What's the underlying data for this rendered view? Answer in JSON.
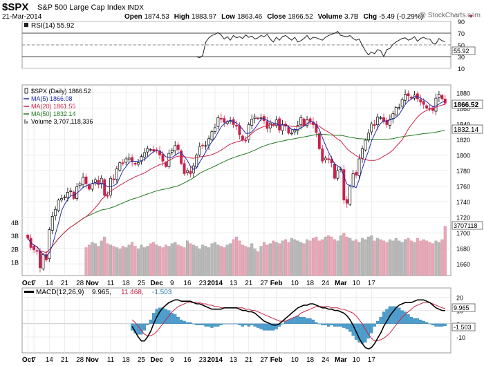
{
  "header": {
    "symbol": "$SPX",
    "name": "S&P 500 Large Cap Index",
    "exchange": "INDX",
    "date": "21-Mar-2014",
    "quote": [
      {
        "label": "Open",
        "value": "1874.53"
      },
      {
        "label": "High",
        "value": "1883.97"
      },
      {
        "label": "Low",
        "value": "1863.46"
      },
      {
        "label": "Close",
        "value": "1866.52"
      },
      {
        "label": "Volume",
        "value": "3.7B"
      },
      {
        "label": "Chg",
        "value": "-5.49 (-0.29%)"
      }
    ],
    "chg_arrow": "down-triangle-icon",
    "watermark": "@ StockCharts.com"
  },
  "colors": {
    "up": "#ffffff",
    "down": "#cc1f4a",
    "ma5": "#1f2aa8",
    "ma20": "#cc2244",
    "ma50": "#1e7a1e",
    "vol_up": "#b8b8b8",
    "vol_down": "#e8a7b6",
    "macd_hist": "#4a9fd0",
    "rsi_line": "#222222"
  },
  "chart_data": [
    {
      "type": "line",
      "panel": "rsi",
      "legend": "RSI(14) 55.92",
      "last_label": "55.92",
      "ylim": [
        10,
        90
      ],
      "yticks": [
        90,
        70,
        50,
        30,
        10
      ],
      "reference_lines": [
        70,
        30
      ],
      "series": [
        {
          "name": "RSI(14)",
          "values": [
            30,
            28,
            32,
            55,
            62,
            66,
            68,
            71,
            67,
            60,
            64,
            58,
            66,
            62,
            64,
            61,
            67,
            63,
            65,
            60,
            62,
            66,
            64,
            68,
            60,
            55,
            63,
            58,
            64,
            66,
            62,
            58,
            63,
            55,
            57,
            61,
            66,
            59,
            63,
            62,
            60,
            58,
            63,
            66,
            68,
            70,
            73,
            66,
            65,
            64,
            66,
            61,
            58,
            60,
            49,
            40,
            33,
            38,
            35,
            42,
            40,
            30,
            42,
            44,
            51,
            55,
            58,
            61,
            62,
            58,
            60,
            64,
            56,
            61,
            63,
            60,
            60,
            53,
            52,
            61,
            57,
            55.92
          ]
        }
      ]
    },
    {
      "type": "candlestick",
      "panel": "price",
      "legend": [
        {
          "label": "$SPX (Daily) 1866.52",
          "marker": "candle"
        },
        {
          "label": "MA(5) 1866.08",
          "color": "#1f2aa8"
        },
        {
          "label": "MA(20) 1861.55",
          "color": "#cc2244"
        },
        {
          "label": "MA(50) 1832.14",
          "color": "#1e7a1e"
        },
        {
          "label": "Volume 3,707,118,336",
          "marker": "bars"
        }
      ],
      "ylim": [
        1645,
        1890
      ],
      "yticks": [
        1660,
        1680,
        1700,
        1720,
        1740,
        1760,
        1780,
        1800,
        1820,
        1840,
        1860,
        1880
      ],
      "last_labels": [
        "1866.52",
        "1832.14"
      ],
      "xticks": [
        {
          "label": "Oct",
          "index": 0,
          "bold": true
        },
        {
          "label": "7",
          "index": 2
        },
        {
          "label": "14",
          "index": 7
        },
        {
          "label": "21",
          "index": 12
        },
        {
          "label": "28",
          "index": 17
        },
        {
          "label": "Nov",
          "index": 21,
          "bold": true
        },
        {
          "label": "11",
          "index": 27
        },
        {
          "label": "18",
          "index": 32
        },
        {
          "label": "25",
          "index": 37
        },
        {
          "label": "Dec",
          "index": 42,
          "bold": true
        },
        {
          "label": "9",
          "index": 47
        },
        {
          "label": "16",
          "index": 52
        },
        {
          "label": "23",
          "index": 57
        },
        {
          "label": "2014",
          "index": 61,
          "bold": true
        },
        {
          "label": "13",
          "index": 67
        },
        {
          "label": "21",
          "index": 72
        },
        {
          "label": "27",
          "index": 77
        },
        {
          "label": "Feb",
          "index": 81,
          "bold": true
        },
        {
          "label": "10",
          "index": 87
        },
        {
          "label": "18",
          "index": 92
        },
        {
          "label": "24",
          "index": 97
        },
        {
          "label": "Mar",
          "index": 102,
          "bold": true
        },
        {
          "label": "10",
          "index": 107
        },
        {
          "label": "17",
          "index": 112
        }
      ],
      "close": [
        1693,
        1681,
        1678,
        1676,
        1655,
        1672,
        1665,
        1704,
        1721,
        1730,
        1742,
        1744,
        1746,
        1752,
        1754,
        1744,
        1759,
        1763,
        1771,
        1763,
        1756,
        1763,
        1768,
        1762,
        1770,
        1748,
        1747,
        1770,
        1768,
        1782,
        1790,
        1789,
        1795,
        1796,
        1791,
        1788,
        1790,
        1798,
        1803,
        1808,
        1807,
        1805,
        1806,
        1800,
        1792,
        1785,
        1802,
        1806,
        1812,
        1807,
        1789,
        1776,
        1780,
        1776,
        1786,
        1800,
        1811,
        1812,
        1812,
        1821,
        1830,
        1835,
        1848,
        1846,
        1842,
        1843,
        1844,
        1839,
        1837,
        1826,
        1819,
        1818,
        1839,
        1846,
        1849,
        1847,
        1848,
        1844,
        1834,
        1841,
        1838,
        1845,
        1832,
        1839,
        1837,
        1828,
        1828,
        1832,
        1838,
        1848,
        1838,
        1845,
        1843,
        1839,
        1829,
        1808,
        1792,
        1796,
        1794,
        1790,
        1770,
        1780,
        1782,
        1742,
        1738,
        1760,
        1776,
        1774,
        1795,
        1808,
        1819,
        1828,
        1840,
        1838,
        1849,
        1848,
        1843,
        1839,
        1846,
        1853,
        1861,
        1861,
        1871,
        1878,
        1876,
        1873,
        1877,
        1872,
        1868,
        1865,
        1860,
        1859,
        1857,
        1873,
        1878,
        1872,
        1866.52
      ]
    },
    {
      "type": "bar",
      "panel": "volume",
      "name": "Volume",
      "ylim": [
        0,
        4.3
      ],
      "yticks": [
        {
          "label": "4B",
          "value": 4
        },
        {
          "label": "3B",
          "value": 3
        },
        {
          "label": "2B",
          "value": 2
        },
        {
          "label": "1B",
          "value": 1
        }
      ],
      "last_label": "3707118",
      "values": [
        2.1,
        2.3,
        2.5,
        2.4,
        2.2,
        2.6,
        2.9,
        2.4,
        2.3,
        2.2,
        2.1,
        2.0,
        2.2,
        2.1,
        2.3,
        2.5,
        2.2,
        2.0,
        2.3,
        2.1,
        2.2,
        2.4,
        2.5,
        2.3,
        2.2,
        2.1,
        2.3,
        2.2,
        2.4,
        2.5,
        2.3,
        2.2,
        2.1,
        2.6,
        2.4,
        2.3,
        2.2,
        2.0,
        2.3,
        2.2,
        2.1,
        2.4,
        2.5,
        2.3,
        2.2,
        2.1,
        2.3,
        2.4,
        2.7,
        2.9,
        2.6,
        2.3,
        2.2,
        2.1,
        2.4,
        2.0,
        1.8,
        2.2,
        2.5,
        2.3,
        2.4,
        2.6,
        2.5,
        2.4,
        2.6,
        2.7,
        2.5,
        2.8,
        2.7,
        2.6,
        2.5,
        2.4,
        2.7,
        2.6,
        2.8,
        2.9,
        2.6,
        2.7,
        2.9,
        3.0,
        2.9,
        2.7,
        2.6,
        3.0,
        3.2,
        2.9,
        2.8,
        2.6,
        2.7,
        2.5,
        2.8,
        2.7,
        2.9,
        3.0,
        2.6,
        2.8,
        2.7,
        2.6,
        2.5,
        2.7,
        2.6,
        2.8,
        2.6,
        2.5,
        2.7,
        2.8,
        2.6,
        2.5,
        2.8,
        2.6,
        2.7,
        2.6,
        2.5,
        2.4,
        2.6,
        2.5,
        2.7,
        3.7
      ]
    },
    {
      "type": "line",
      "panel": "macd",
      "legend": [
        {
          "label": "MACD(12,26,9)",
          "value": "9.965,",
          "color": "#000000"
        },
        {
          "label": "",
          "value": "11.468,",
          "color": "#cc2244"
        },
        {
          "label": "",
          "value": "-1.503",
          "color": "#2a7ab5"
        }
      ],
      "ylim": [
        -22,
        27
      ],
      "yticks": [
        20,
        10,
        0,
        -10
      ],
      "last_labels": [
        "9.965",
        "-1.503"
      ],
      "series": [
        {
          "name": "MACD",
          "values": [
            -2,
            -6,
            -10,
            -13,
            -13,
            -10,
            -6,
            0,
            5,
            9,
            12,
            14,
            16,
            17,
            18,
            18,
            17,
            17,
            17,
            17,
            16,
            15,
            15,
            14,
            13,
            12,
            11,
            11,
            11,
            11,
            12,
            12,
            12,
            12,
            12,
            11,
            10,
            10,
            9,
            9,
            8,
            6,
            4,
            2,
            1,
            0,
            -1,
            -1,
            0,
            2,
            4,
            6,
            8,
            10,
            12,
            13,
            14,
            14,
            15,
            15,
            14,
            13,
            12,
            12,
            11,
            11,
            10,
            10,
            9,
            8,
            6,
            3,
            -1,
            -6,
            -11,
            -15,
            -18,
            -19,
            -18,
            -15,
            -11,
            -7,
            -2,
            2,
            6,
            9,
            12,
            14,
            15,
            16,
            16,
            16,
            17,
            18,
            18,
            18,
            17,
            16,
            14,
            12,
            11,
            10,
            9.965
          ]
        },
        {
          "name": "Signal",
          "values": [
            3,
            1,
            -2,
            -5,
            -8,
            -9,
            -9,
            -8,
            -6,
            -3,
            0,
            3,
            6,
            9,
            11,
            13,
            14,
            15,
            16,
            16,
            16,
            16,
            16,
            15,
            15,
            14,
            14,
            13,
            13,
            12,
            12,
            12,
            12,
            12,
            12,
            12,
            12,
            11,
            11,
            10,
            10,
            9,
            8,
            7,
            6,
            5,
            4,
            3,
            2,
            2,
            2,
            3,
            4,
            5,
            6,
            8,
            9,
            10,
            11,
            12,
            13,
            13,
            13,
            13,
            13,
            12,
            12,
            12,
            11,
            11,
            10,
            9,
            8,
            6,
            3,
            0,
            -4,
            -8,
            -11,
            -13,
            -13,
            -12,
            -11,
            -9,
            -7,
            -4,
            -1,
            2,
            5,
            7,
            9,
            11,
            13,
            14,
            15,
            16,
            16,
            16,
            15,
            14,
            13,
            12,
            11.468
          ]
        }
      ],
      "histogram": {
        "name": "Histogram",
        "values": [
          -5,
          -7,
          -8,
          -8,
          -5,
          -1,
          3,
          8,
          11,
          12,
          12,
          11,
          10,
          8,
          7,
          5,
          3,
          2,
          1,
          1,
          0,
          -1,
          -1,
          -1,
          -2,
          -2,
          -3,
          -2,
          -2,
          -1,
          0,
          0,
          0,
          0,
          0,
          -1,
          -2,
          -1,
          -2,
          -1,
          -2,
          -3,
          -4,
          -5,
          -5,
          -5,
          -5,
          -4,
          -2,
          0,
          2,
          3,
          4,
          5,
          6,
          5,
          5,
          4,
          4,
          3,
          1,
          0,
          -1,
          -1,
          -2,
          -1,
          -2,
          -2,
          -2,
          -3,
          -4,
          -6,
          -9,
          -12,
          -14,
          -15,
          -14,
          -11,
          -7,
          -2,
          2,
          5,
          9,
          11,
          13,
          13,
          13,
          12,
          10,
          9,
          7,
          5,
          4,
          4,
          3,
          2,
          1,
          0,
          -1,
          -2,
          -2,
          -2,
          -1.503
        ]
      },
      "xticks": [
        {
          "label": "Oct",
          "index": 0,
          "bold": true
        },
        {
          "label": "7",
          "index": 2
        },
        {
          "label": "14",
          "index": 7
        },
        {
          "label": "21",
          "index": 12
        },
        {
          "label": "28",
          "index": 17
        },
        {
          "label": "Nov",
          "index": 21,
          "bold": true
        },
        {
          "label": "11",
          "index": 27
        },
        {
          "label": "18",
          "index": 32
        },
        {
          "label": "25",
          "index": 37
        },
        {
          "label": "Dec",
          "index": 42,
          "bold": true
        },
        {
          "label": "9",
          "index": 47
        },
        {
          "label": "16",
          "index": 52
        },
        {
          "label": "23",
          "index": 57
        },
        {
          "label": "2014",
          "index": 61,
          "bold": true
        },
        {
          "label": "13",
          "index": 67
        },
        {
          "label": "21",
          "index": 72
        },
        {
          "label": "27",
          "index": 77
        },
        {
          "label": "Feb",
          "index": 81,
          "bold": true
        },
        {
          "label": "10",
          "index": 87
        },
        {
          "label": "18",
          "index": 92
        },
        {
          "label": "24",
          "index": 97
        },
        {
          "label": "Mar",
          "index": 102,
          "bold": true
        },
        {
          "label": "10",
          "index": 107
        },
        {
          "label": "17",
          "index": 112
        }
      ]
    }
  ]
}
